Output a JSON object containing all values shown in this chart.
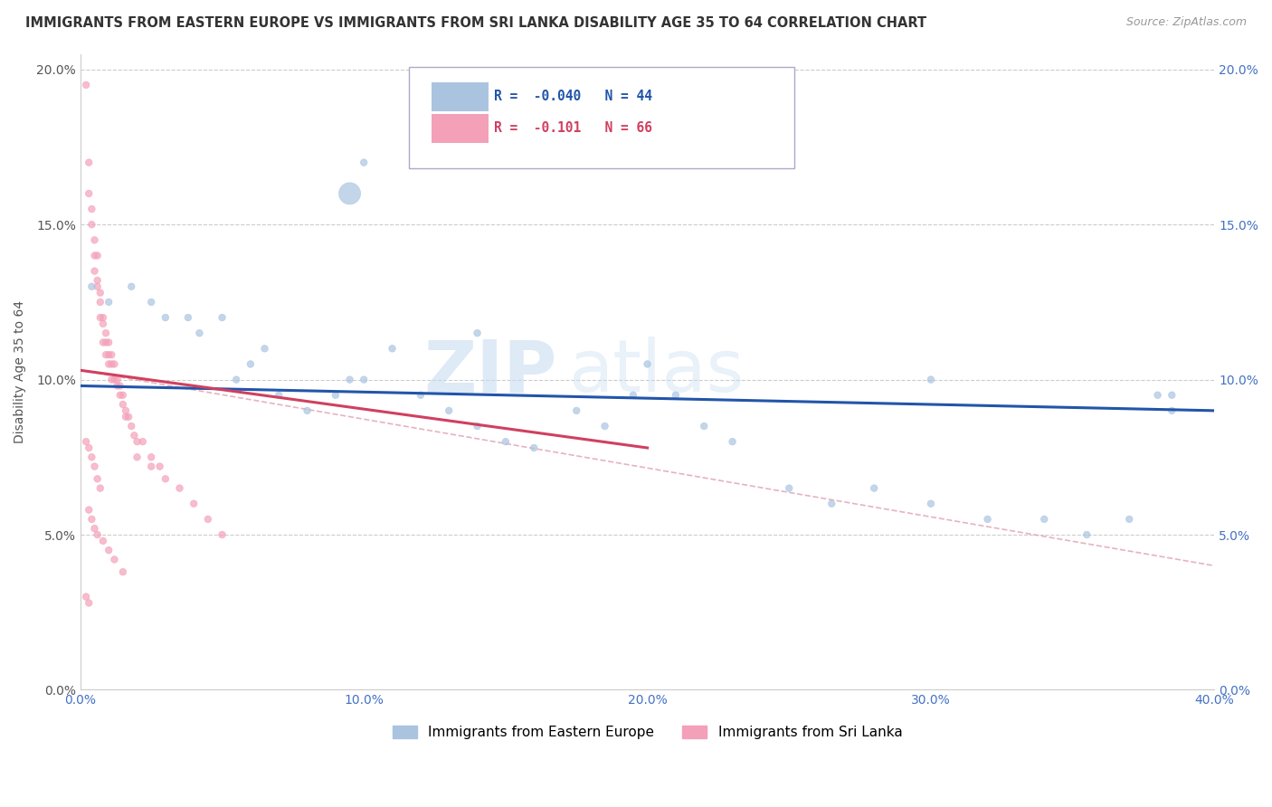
{
  "title": "IMMIGRANTS FROM EASTERN EUROPE VS IMMIGRANTS FROM SRI LANKA DISABILITY AGE 35 TO 64 CORRELATION CHART",
  "source": "Source: ZipAtlas.com",
  "ylabel": "Disability Age 35 to 64",
  "xlim": [
    0.0,
    0.4
  ],
  "ylim": [
    0.0,
    0.205
  ],
  "xticks": [
    0.0,
    0.1,
    0.2,
    0.3,
    0.4
  ],
  "xticklabels": [
    "0.0%",
    "10.0%",
    "20.0%",
    "30.0%",
    "40.0%"
  ],
  "yticks_left": [
    0.0,
    0.05,
    0.1,
    0.15,
    0.2
  ],
  "yticklabels_left": [
    "0.0%",
    "5.0%",
    "10.0%",
    "15.0%",
    "20.0%"
  ],
  "yticks_right": [
    0.0,
    0.05,
    0.1,
    0.15,
    0.2
  ],
  "yticklabels_right": [
    "0.0%",
    "5.0%",
    "10.0%",
    "15.0%",
    "20.0%"
  ],
  "legend_r_blue_val": "-0.040",
  "legend_n_blue_val": "44",
  "legend_r_pink_val": "-0.101",
  "legend_n_pink_val": "66",
  "blue_color": "#aac4e0",
  "pink_color": "#f4a0b8",
  "blue_line_color": "#2255aa",
  "pink_line_color": "#d04060",
  "ref_line_color": "#e0a0b0",
  "watermark_zip": "ZIP",
  "watermark_atlas": "atlas",
  "legend_label_blue": "Immigrants from Eastern Europe",
  "legend_label_pink": "Immigrants from Sri Lanka",
  "blue_scatter_x": [
    0.004,
    0.01,
    0.018,
    0.025,
    0.03,
    0.038,
    0.042,
    0.05,
    0.055,
    0.06,
    0.065,
    0.07,
    0.08,
    0.09,
    0.095,
    0.1,
    0.11,
    0.12,
    0.13,
    0.14,
    0.15,
    0.16,
    0.175,
    0.185,
    0.195,
    0.21,
    0.22,
    0.23,
    0.25,
    0.265,
    0.28,
    0.3,
    0.32,
    0.34,
    0.355,
    0.37,
    0.385,
    0.095,
    0.1,
    0.14,
    0.2,
    0.3,
    0.38,
    0.385
  ],
  "blue_scatter_y": [
    0.13,
    0.125,
    0.13,
    0.125,
    0.12,
    0.12,
    0.115,
    0.12,
    0.1,
    0.105,
    0.11,
    0.095,
    0.09,
    0.095,
    0.1,
    0.1,
    0.11,
    0.095,
    0.09,
    0.085,
    0.08,
    0.078,
    0.09,
    0.085,
    0.095,
    0.095,
    0.085,
    0.08,
    0.065,
    0.06,
    0.065,
    0.06,
    0.055,
    0.055,
    0.05,
    0.055,
    0.095,
    0.16,
    0.17,
    0.115,
    0.105,
    0.1,
    0.095,
    0.09
  ],
  "blue_scatter_size": [
    30,
    30,
    30,
    30,
    30,
    30,
    30,
    30,
    30,
    30,
    30,
    30,
    30,
    30,
    30,
    30,
    30,
    30,
    30,
    30,
    30,
    30,
    30,
    30,
    30,
    30,
    30,
    30,
    30,
    30,
    30,
    30,
    30,
    30,
    30,
    30,
    30,
    300,
    30,
    30,
    30,
    30,
    30,
    30
  ],
  "pink_scatter_x": [
    0.002,
    0.003,
    0.003,
    0.004,
    0.004,
    0.005,
    0.005,
    0.005,
    0.006,
    0.006,
    0.006,
    0.007,
    0.007,
    0.007,
    0.008,
    0.008,
    0.008,
    0.009,
    0.009,
    0.009,
    0.01,
    0.01,
    0.01,
    0.011,
    0.011,
    0.011,
    0.012,
    0.012,
    0.013,
    0.013,
    0.014,
    0.014,
    0.015,
    0.015,
    0.016,
    0.016,
    0.017,
    0.018,
    0.019,
    0.02,
    0.022,
    0.025,
    0.028,
    0.03,
    0.035,
    0.04,
    0.045,
    0.05,
    0.002,
    0.003,
    0.004,
    0.005,
    0.006,
    0.007,
    0.02,
    0.025,
    0.003,
    0.004,
    0.005,
    0.006,
    0.008,
    0.01,
    0.012,
    0.015,
    0.002,
    0.003
  ],
  "pink_scatter_y": [
    0.195,
    0.17,
    0.16,
    0.155,
    0.15,
    0.145,
    0.14,
    0.135,
    0.14,
    0.132,
    0.13,
    0.128,
    0.125,
    0.12,
    0.12,
    0.118,
    0.112,
    0.115,
    0.112,
    0.108,
    0.112,
    0.108,
    0.105,
    0.108,
    0.105,
    0.1,
    0.105,
    0.1,
    0.1,
    0.098,
    0.098,
    0.095,
    0.095,
    0.092,
    0.09,
    0.088,
    0.088,
    0.085,
    0.082,
    0.08,
    0.08,
    0.075,
    0.072,
    0.068,
    0.065,
    0.06,
    0.055,
    0.05,
    0.08,
    0.078,
    0.075,
    0.072,
    0.068,
    0.065,
    0.075,
    0.072,
    0.058,
    0.055,
    0.052,
    0.05,
    0.048,
    0.045,
    0.042,
    0.038,
    0.03,
    0.028
  ],
  "pink_scatter_size": [
    30,
    30,
    30,
    30,
    30,
    30,
    30,
    30,
    30,
    30,
    30,
    30,
    30,
    30,
    30,
    30,
    30,
    30,
    30,
    30,
    30,
    30,
    30,
    30,
    30,
    30,
    30,
    30,
    30,
    30,
    30,
    30,
    30,
    30,
    30,
    30,
    30,
    30,
    30,
    30,
    30,
    30,
    30,
    30,
    30,
    30,
    30,
    30,
    30,
    30,
    30,
    30,
    30,
    30,
    30,
    30,
    30,
    30,
    30,
    30,
    30,
    30,
    30,
    30,
    30,
    30
  ],
  "blue_trendline_x": [
    0.0,
    0.4
  ],
  "blue_trendline_y": [
    0.098,
    0.09
  ],
  "pink_trendline_x": [
    0.0,
    0.2
  ],
  "pink_trendline_y": [
    0.103,
    0.078
  ],
  "ref_line_x": [
    0.0,
    0.4
  ],
  "ref_line_y": [
    0.103,
    0.04
  ]
}
